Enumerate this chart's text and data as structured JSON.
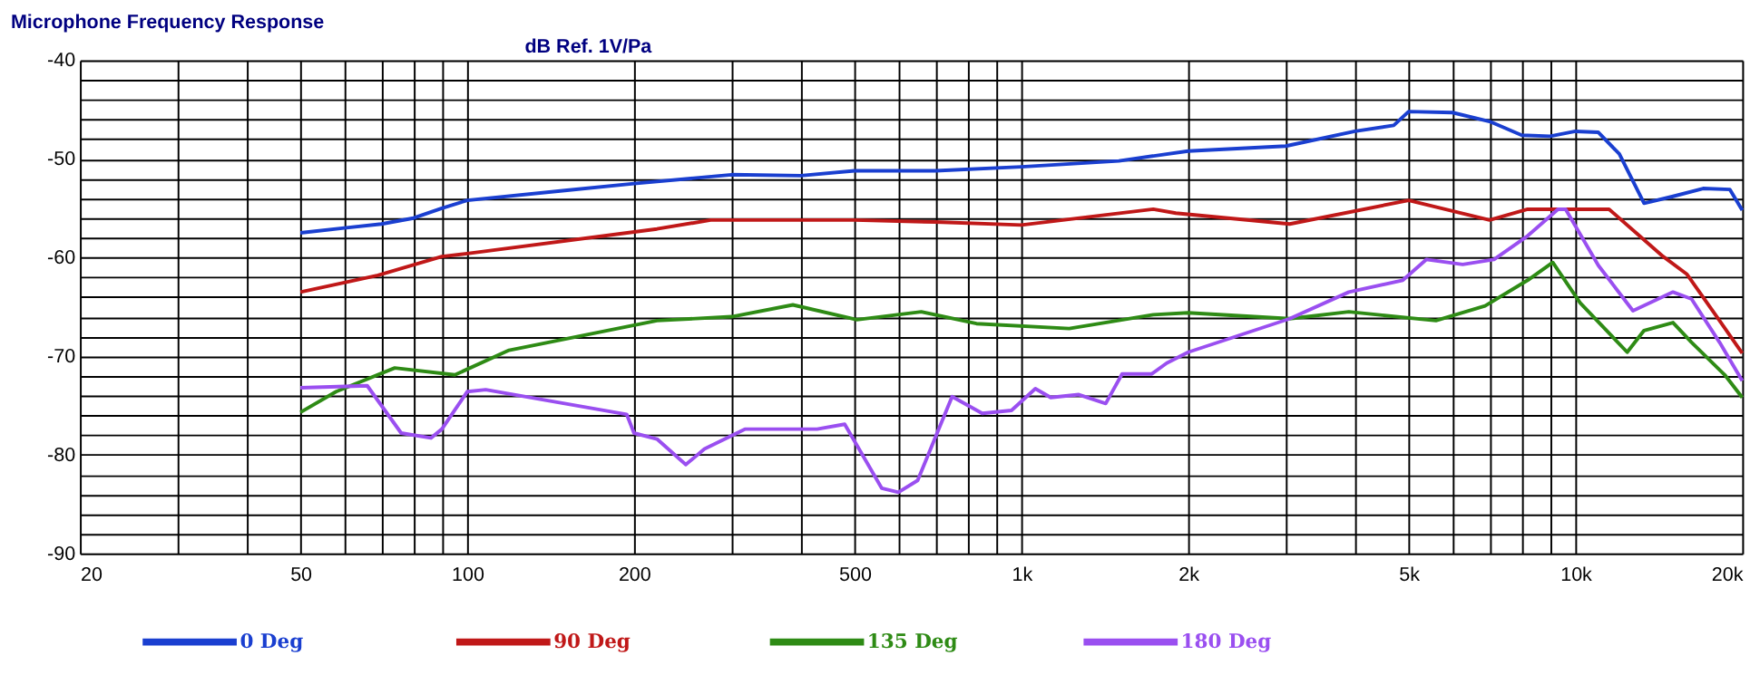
{
  "chart_data": {
    "type": "line",
    "title": "Microphone Frequency Response",
    "ylabel": "dB Ref. 1V/Pa",
    "xlim": [
      20,
      20000
    ],
    "ylim": [
      -90,
      -40
    ],
    "log": "x",
    "grid": true,
    "legend": "bottom",
    "xticks": [
      20,
      {
        "value": 30,
        "label": null
      },
      {
        "value": 40,
        "label": null
      },
      50,
      {
        "value": 60,
        "label": null
      },
      {
        "value": 70,
        "label": null
      },
      {
        "value": 80,
        "label": null
      },
      {
        "value": 90,
        "label": null
      },
      100,
      200,
      {
        "value": 300,
        "label": null
      },
      {
        "value": 400,
        "label": null
      },
      500,
      {
        "value": 600,
        "label": null
      },
      {
        "value": 700,
        "label": null
      },
      {
        "value": 800,
        "label": null
      },
      {
        "value": 900,
        "label": null
      },
      {
        "value": 1000,
        "label": "1k"
      },
      {
        "value": 2000,
        "label": "2k"
      },
      {
        "value": 3000,
        "label": null
      },
      {
        "value": 4000,
        "label": null
      },
      {
        "value": 5000,
        "label": "5k"
      },
      {
        "value": 6000,
        "label": null
      },
      {
        "value": 7000,
        "label": null
      },
      {
        "value": 8000,
        "label": null
      },
      {
        "value": 9000,
        "label": null
      },
      {
        "value": 10000,
        "label": "10k"
      },
      {
        "value": 20000,
        "label": "20k"
      }
    ],
    "yticks": [
      -90,
      {
        "value": -88,
        "label": null
      },
      {
        "value": -86,
        "label": null
      },
      {
        "value": -84,
        "label": null
      },
      {
        "value": -82,
        "label": null
      },
      -80,
      {
        "value": -78,
        "label": null
      },
      {
        "value": -76,
        "label": null
      },
      {
        "value": -74,
        "label": null
      },
      {
        "value": -72,
        "label": null
      },
      -70,
      {
        "value": -68,
        "label": null
      },
      {
        "value": -66,
        "label": null
      },
      {
        "value": -64,
        "label": null
      },
      {
        "value": -62,
        "label": null
      },
      -60,
      {
        "value": -58,
        "label": null
      },
      {
        "value": -56,
        "label": null
      },
      {
        "value": -54,
        "label": null
      },
      {
        "value": -52,
        "label": null
      },
      -50,
      {
        "value": -48,
        "label": null
      },
      {
        "value": -46,
        "label": null
      },
      {
        "value": -44,
        "label": null
      },
      {
        "value": -42,
        "label": null
      },
      -40
    ],
    "series": [
      {
        "name": "0 Deg",
        "color": "#1a3fd0",
        "x": [
          50,
          60,
          70,
          80,
          90,
          100,
          150,
          200,
          300,
          400,
          500,
          700,
          1000,
          1500,
          2000,
          3000,
          4000,
          4700,
          5000,
          6000,
          7000,
          8000,
          9000,
          10000,
          11000,
          12000,
          13300,
          15000,
          17000,
          19000,
          20000
        ],
        "values": [
          -57.5,
          -57,
          -56.6,
          -56,
          -55,
          -54.2,
          -53.2,
          -52.5,
          -51.6,
          -51.7,
          -51.2,
          -51.2,
          -50.8,
          -50.2,
          -49.2,
          -48.7,
          -47.2,
          -46.6,
          -45.2,
          -45.3,
          -46.2,
          -47.6,
          -47.7,
          -47.2,
          -47.3,
          -49.5,
          -54.5,
          -53.8,
          -53,
          -53.1,
          -55.2
        ]
      },
      {
        "name": "90 Deg",
        "color": "#c01818",
        "x": [
          50,
          69,
          90,
          100,
          220,
          275,
          500,
          700,
          1000,
          1730,
          1900,
          3050,
          5000,
          7000,
          8200,
          10000,
          11500,
          14400,
          15900,
          18200,
          20000
        ],
        "values": [
          -63.5,
          -61.8,
          -59.9,
          -59.6,
          -57.1,
          -56.2,
          -56.2,
          -56.4,
          -56.7,
          -55.1,
          -55.5,
          -56.6,
          -54.2,
          -56.2,
          -55.1,
          -55.1,
          -55.1,
          -59.9,
          -61.7,
          -66.4,
          -69.7
        ]
      },
      {
        "name": "135 Deg",
        "color": "#2e8b15",
        "x": [
          50,
          58,
          74,
          95,
          119,
          220,
          300,
          387,
          505,
          660,
          830,
          1220,
          1730,
          2000,
          3050,
          3900,
          5600,
          6870,
          8200,
          9100,
          10200,
          12400,
          13300,
          15000,
          16200,
          18600,
          20000
        ],
        "values": [
          -75.7,
          -73.6,
          -71.2,
          -71.9,
          -69.4,
          -66.4,
          -66,
          -64.8,
          -66.3,
          -65.5,
          -66.7,
          -67.2,
          -65.8,
          -65.6,
          -66.2,
          -65.5,
          -66.4,
          -64.9,
          -62.3,
          -60.5,
          -64.6,
          -69.6,
          -67.4,
          -66.6,
          -68.6,
          -71.9,
          -74.2
        ]
      },
      {
        "name": "180 Deg",
        "color": "#9a4ff0",
        "x": [
          50,
          66,
          76,
          86,
          90,
          100,
          108,
          194,
          200,
          220,
          248,
          268,
          317,
          428,
          480,
          560,
          600,
          650,
          750,
          850,
          960,
          1060,
          1130,
          1270,
          1420,
          1520,
          1720,
          1830,
          2000,
          3050,
          3900,
          4880,
          5380,
          6260,
          7130,
          8200,
          9300,
          9600,
          11000,
          12700,
          15000,
          16200,
          18200,
          20000
        ],
        "values": [
          -73.2,
          -73,
          -77.8,
          -78.3,
          -77.4,
          -73.6,
          -73.4,
          -75.9,
          -77.8,
          -78.4,
          -81,
          -79.4,
          -77.4,
          -77.4,
          -76.9,
          -83.4,
          -83.8,
          -82.6,
          -74.1,
          -75.8,
          -75.5,
          -73.3,
          -74.2,
          -73.9,
          -74.8,
          -71.8,
          -71.8,
          -70.7,
          -69.6,
          -66.2,
          -63.5,
          -62.3,
          -60.2,
          -60.7,
          -60.2,
          -57.8,
          -55.1,
          -55.1,
          -60.8,
          -65.4,
          -63.5,
          -64.2,
          -68.6,
          -72.5
        ]
      }
    ]
  }
}
